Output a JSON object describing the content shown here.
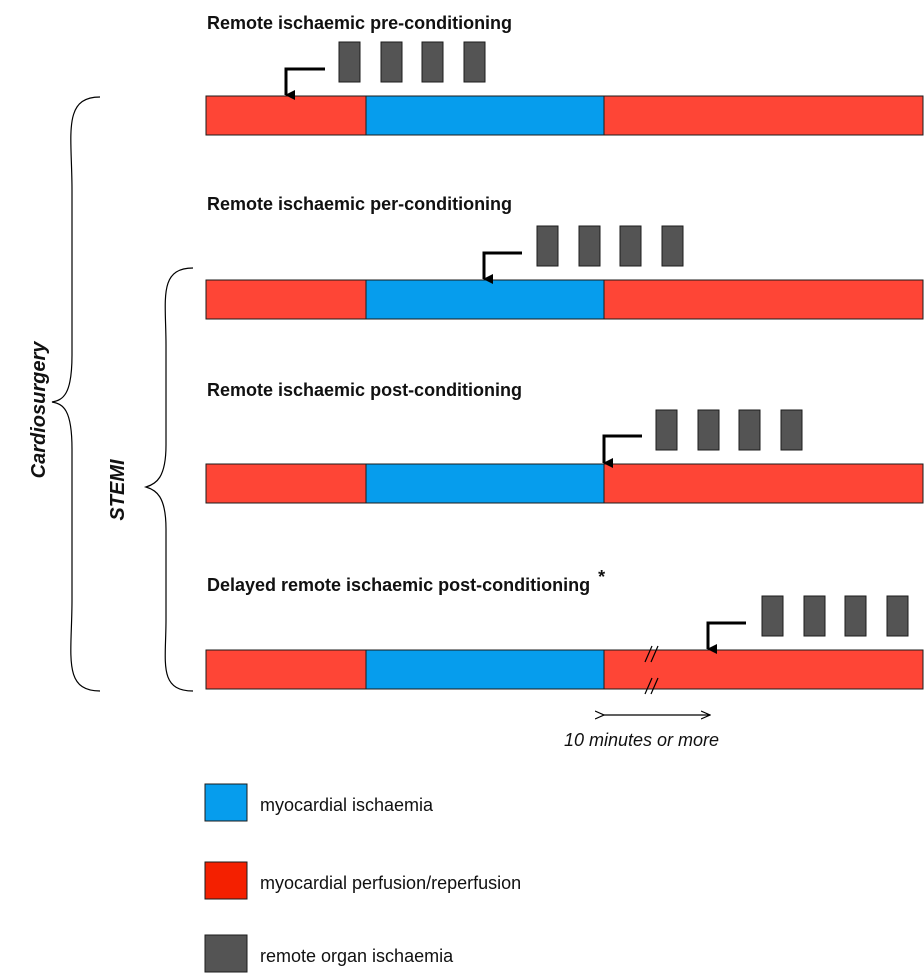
{
  "colors": {
    "ischaemia": "#069ded",
    "perfusion": "#fe4536",
    "perfusion_legend": "#f42000",
    "remote": "#545454",
    "outline": "#1b1b1b",
    "line": "#000000"
  },
  "panels": [
    {
      "title": "Remote ischaemic pre-conditioning",
      "asterisk": ""
    },
    {
      "title": "Remote ischaemic per-conditioning",
      "asterisk": ""
    },
    {
      "title": "Remote ischaemic post-conditioning",
      "asterisk": ""
    },
    {
      "title": "Delayed remote ischaemic post-conditioning",
      "asterisk": "*"
    }
  ],
  "brackets": {
    "outer_label": "Cardiosurgery",
    "inner_label": "STEMI"
  },
  "delay_note": "10 minutes or more",
  "legend": [
    {
      "label": "myocardial ischaemia",
      "color_key": "ischaemia",
      "icon": "blue-square-icon"
    },
    {
      "label": "myocardial perfusion/reperfusion",
      "color_key": "perfusion_legend",
      "icon": "red-square-icon"
    },
    {
      "label": "remote organ ischaemia",
      "color_key": "remote",
      "icon": "grey-square-icon"
    }
  ]
}
